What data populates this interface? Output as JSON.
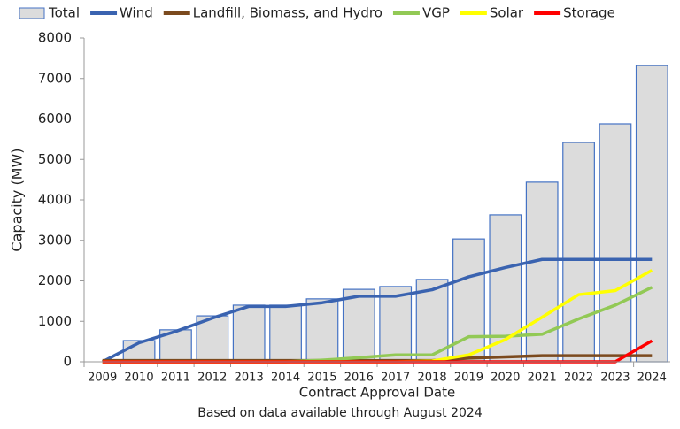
{
  "chart_data": {
    "type": "bar",
    "xlabel": "Contract Approval Date",
    "ylabel": "Capacity (MW)",
    "note": "Based on data available through August 2024",
    "categories": [
      "2009",
      "2010",
      "2011",
      "2012",
      "2013",
      "2014",
      "2015",
      "2016",
      "2017",
      "2018",
      "2019",
      "2020",
      "2021",
      "2022",
      "2023",
      "2024"
    ],
    "series": [
      {
        "name": "Total",
        "type": "bar",
        "color": "#4472c4",
        "values": [
          0,
          525,
          790,
          1135,
          1400,
          1400,
          1555,
          1790,
          1860,
          2035,
          3035,
          3630,
          4440,
          5420,
          5880,
          7320
        ]
      },
      {
        "name": "Wind",
        "type": "line",
        "color": "#3a63b0",
        "values": [
          0,
          470,
          750,
          1080,
          1370,
          1370,
          1460,
          1620,
          1620,
          1780,
          2100,
          2330,
          2530,
          2530,
          2530,
          2530
        ]
      },
      {
        "name": "Landfill, Biomass, and Hydro",
        "type": "line",
        "color": "#7b4a1e",
        "values": [
          30,
          30,
          30,
          30,
          30,
          30,
          30,
          30,
          30,
          30,
          90,
          120,
          150,
          150,
          150,
          150
        ]
      },
      {
        "name": "VGP",
        "type": "line",
        "color": "#92c955",
        "values": [
          0,
          0,
          0,
          0,
          0,
          0,
          40,
          100,
          170,
          170,
          620,
          630,
          680,
          1060,
          1400,
          1840
        ]
      },
      {
        "name": "Solar",
        "type": "line",
        "color": "#ffff00",
        "values": [
          0,
          0,
          0,
          0,
          0,
          0,
          0,
          0,
          0,
          20,
          170,
          550,
          1100,
          1660,
          1760,
          2260
        ]
      },
      {
        "name": "Storage",
        "type": "line",
        "color": "#ff0000",
        "values": [
          0,
          0,
          0,
          0,
          0,
          0,
          0,
          0,
          0,
          0,
          0,
          0,
          0,
          0,
          0,
          520
        ]
      }
    ],
    "ylim": [
      0,
      8000
    ],
    "yticks": [
      0,
      1000,
      2000,
      3000,
      4000,
      5000,
      6000,
      7000,
      8000
    ],
    "grid": false
  }
}
